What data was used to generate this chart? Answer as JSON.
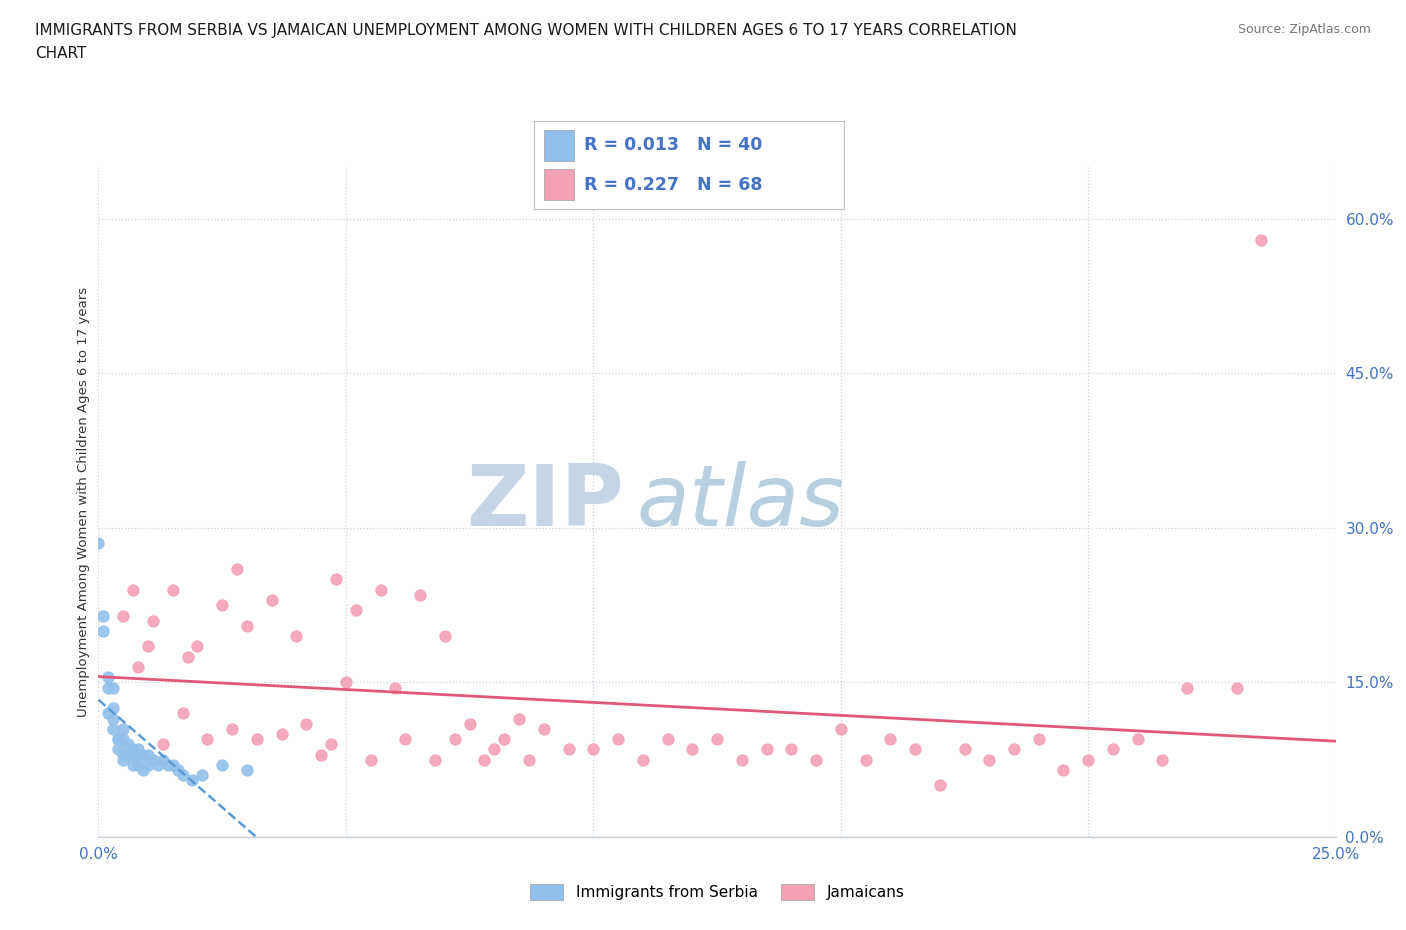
{
  "title_line1": "IMMIGRANTS FROM SERBIA VS JAMAICAN UNEMPLOYMENT AMONG WOMEN WITH CHILDREN AGES 6 TO 17 YEARS CORRELATION",
  "title_line2": "CHART",
  "source": "Source: ZipAtlas.com",
  "ylabel": "Unemployment Among Women with Children Ages 6 to 17 years",
  "xlim": [
    0.0,
    0.25
  ],
  "ylim": [
    0.0,
    0.65
  ],
  "xticks": [
    0.0,
    0.05,
    0.1,
    0.15,
    0.2,
    0.25
  ],
  "yticks": [
    0.0,
    0.15,
    0.3,
    0.45,
    0.6
  ],
  "yticklabels": [
    "0.0%",
    "15.0%",
    "30.0%",
    "45.0%",
    "60.0%"
  ],
  "serbia_color": "#92C0EC",
  "jamaica_color": "#F4A0B5",
  "serbia_R": 0.013,
  "serbia_N": 40,
  "jamaica_R": 0.227,
  "jamaica_N": 68,
  "serbia_trend_color": "#5B9BD5",
  "jamaica_trend_color": "#E05878",
  "watermark_zip": "ZIP",
  "watermark_atlas": "atlas",
  "watermark_color_zip": "#c5d5e5",
  "watermark_color_atlas": "#b8cfe0",
  "background_color": "#ffffff",
  "grid_color": "#c8d0dc",
  "axis_label_color": "#4472C4",
  "legend_border_color": "#c0c0c0",
  "serbia_x": [
    0.0,
    0.001,
    0.001,
    0.002,
    0.002,
    0.002,
    0.003,
    0.003,
    0.003,
    0.003,
    0.004,
    0.004,
    0.004,
    0.005,
    0.005,
    0.005,
    0.005,
    0.006,
    0.006,
    0.007,
    0.007,
    0.007,
    0.008,
    0.008,
    0.008,
    0.009,
    0.009,
    0.01,
    0.01,
    0.011,
    0.012,
    0.013,
    0.014,
    0.015,
    0.016,
    0.017,
    0.019,
    0.021,
    0.025,
    0.03
  ],
  "serbia_y": [
    0.285,
    0.215,
    0.2,
    0.155,
    0.145,
    0.12,
    0.145,
    0.125,
    0.115,
    0.105,
    0.095,
    0.095,
    0.085,
    0.105,
    0.095,
    0.08,
    0.075,
    0.09,
    0.08,
    0.085,
    0.08,
    0.07,
    0.085,
    0.08,
    0.07,
    0.08,
    0.065,
    0.08,
    0.07,
    0.075,
    0.07,
    0.075,
    0.07,
    0.07,
    0.065,
    0.06,
    0.055,
    0.06,
    0.07,
    0.065
  ],
  "jamaica_x": [
    0.005,
    0.007,
    0.008,
    0.01,
    0.011,
    0.013,
    0.015,
    0.017,
    0.018,
    0.02,
    0.022,
    0.025,
    0.027,
    0.028,
    0.03,
    0.032,
    0.035,
    0.037,
    0.04,
    0.042,
    0.045,
    0.047,
    0.048,
    0.05,
    0.052,
    0.055,
    0.057,
    0.06,
    0.062,
    0.065,
    0.068,
    0.07,
    0.072,
    0.075,
    0.078,
    0.08,
    0.082,
    0.085,
    0.087,
    0.09,
    0.095,
    0.1,
    0.105,
    0.11,
    0.115,
    0.12,
    0.125,
    0.13,
    0.135,
    0.14,
    0.145,
    0.15,
    0.155,
    0.16,
    0.165,
    0.17,
    0.175,
    0.18,
    0.185,
    0.19,
    0.195,
    0.2,
    0.205,
    0.21,
    0.215,
    0.22,
    0.23,
    0.235
  ],
  "jamaica_y": [
    0.215,
    0.24,
    0.165,
    0.185,
    0.21,
    0.09,
    0.24,
    0.12,
    0.175,
    0.185,
    0.095,
    0.225,
    0.105,
    0.26,
    0.205,
    0.095,
    0.23,
    0.1,
    0.195,
    0.11,
    0.08,
    0.09,
    0.25,
    0.15,
    0.22,
    0.075,
    0.24,
    0.145,
    0.095,
    0.235,
    0.075,
    0.195,
    0.095,
    0.11,
    0.075,
    0.085,
    0.095,
    0.115,
    0.075,
    0.105,
    0.085,
    0.085,
    0.095,
    0.075,
    0.095,
    0.085,
    0.095,
    0.075,
    0.085,
    0.085,
    0.075,
    0.105,
    0.075,
    0.095,
    0.085,
    0.05,
    0.085,
    0.075,
    0.085,
    0.095,
    0.065,
    0.075,
    0.085,
    0.095,
    0.075,
    0.145,
    0.145,
    0.58
  ]
}
